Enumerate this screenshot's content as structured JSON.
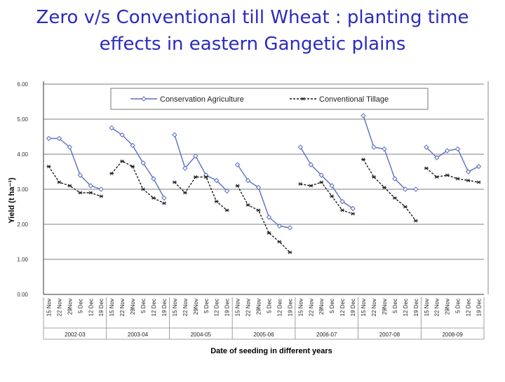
{
  "slide": {
    "title_line1": "Zero v/s Conventional till Wheat : planting time",
    "title_line2": "effects in eastern Gangetic plains"
  },
  "chart_data": {
    "type": "line",
    "ylabel": "Yield (t ha⁻¹)",
    "xlabel": "Date of seeding in different years",
    "ylim": [
      0,
      6
    ],
    "y_ticks": [
      "0.00",
      "1.00",
      "2.00",
      "3.00",
      "4.00",
      "5.00",
      "6.00"
    ],
    "grid": true,
    "legend_position": "top",
    "groups": [
      {
        "label": "2002-03",
        "dates": [
          "15 Nov",
          "22 Nov",
          "29Nov",
          "5 Dec",
          "12 Dec",
          "19 Dec"
        ]
      },
      {
        "label": "2003-04",
        "dates": [
          "15 Nov",
          "22 Nov",
          "29Nov",
          "5 Dec",
          "12 Dec",
          "19 Dec"
        ]
      },
      {
        "label": "2004-05",
        "dates": [
          "15 Nov",
          "22 Nov",
          "29Nov",
          "5 Dec",
          "12 Dec",
          "19 Dec"
        ]
      },
      {
        "label": "2005-06",
        "dates": [
          "15 Nov",
          "22 Nov",
          "29Nov",
          "5 Dec",
          "12 Dec",
          "19 Dec"
        ]
      },
      {
        "label": "2006-07",
        "dates": [
          "15 Nov",
          "22 Nov",
          "29Nov",
          "5 Dec",
          "12 Dec",
          "19 Dec"
        ]
      },
      {
        "label": "2007-08",
        "dates": [
          "15 Nov",
          "22 Nov",
          "29Nov",
          "5 Dec",
          "12 Dec",
          "19 Dec"
        ]
      },
      {
        "label": "2008-09",
        "dates": [
          "15 Nov",
          "22 Nov",
          "29Nov",
          "5 Dec",
          "12 Dec",
          "19 Dec"
        ]
      }
    ],
    "series": [
      {
        "name": "Conservation Agriculture",
        "color": "#5b6fbf",
        "marker": "diamond",
        "line_style": "solid",
        "values": [
          [
            4.45,
            4.45,
            4.2,
            3.4,
            3.1,
            3.0
          ],
          [
            4.75,
            4.55,
            4.25,
            3.75,
            3.3,
            2.75
          ],
          [
            4.55,
            3.6,
            3.95,
            3.4,
            3.25,
            2.95
          ],
          [
            3.7,
            3.25,
            3.05,
            2.2,
            1.95,
            1.9
          ],
          [
            4.2,
            3.7,
            3.4,
            3.1,
            2.65,
            2.45
          ],
          [
            5.1,
            4.2,
            4.15,
            3.3,
            3.0,
            3.0
          ],
          [
            4.2,
            3.9,
            4.1,
            4.15,
            3.5,
            3.65
          ]
        ]
      },
      {
        "name": "Conventional Tillage",
        "color": "#1a1a1a",
        "marker": "asterisk",
        "line_style": "dashed",
        "values": [
          [
            3.65,
            3.2,
            3.1,
            2.9,
            2.9,
            2.8
          ],
          [
            3.45,
            3.8,
            3.65,
            3.0,
            2.75,
            2.6
          ],
          [
            3.2,
            2.9,
            3.35,
            3.35,
            2.65,
            2.4
          ],
          [
            3.1,
            2.55,
            2.4,
            1.75,
            1.5,
            1.2
          ],
          [
            3.15,
            3.1,
            3.2,
            2.8,
            2.4,
            2.3
          ],
          [
            3.85,
            3.35,
            3.05,
            2.75,
            2.5,
            2.1
          ],
          [
            3.6,
            3.35,
            3.4,
            3.3,
            3.25,
            3.2
          ]
        ]
      }
    ]
  }
}
